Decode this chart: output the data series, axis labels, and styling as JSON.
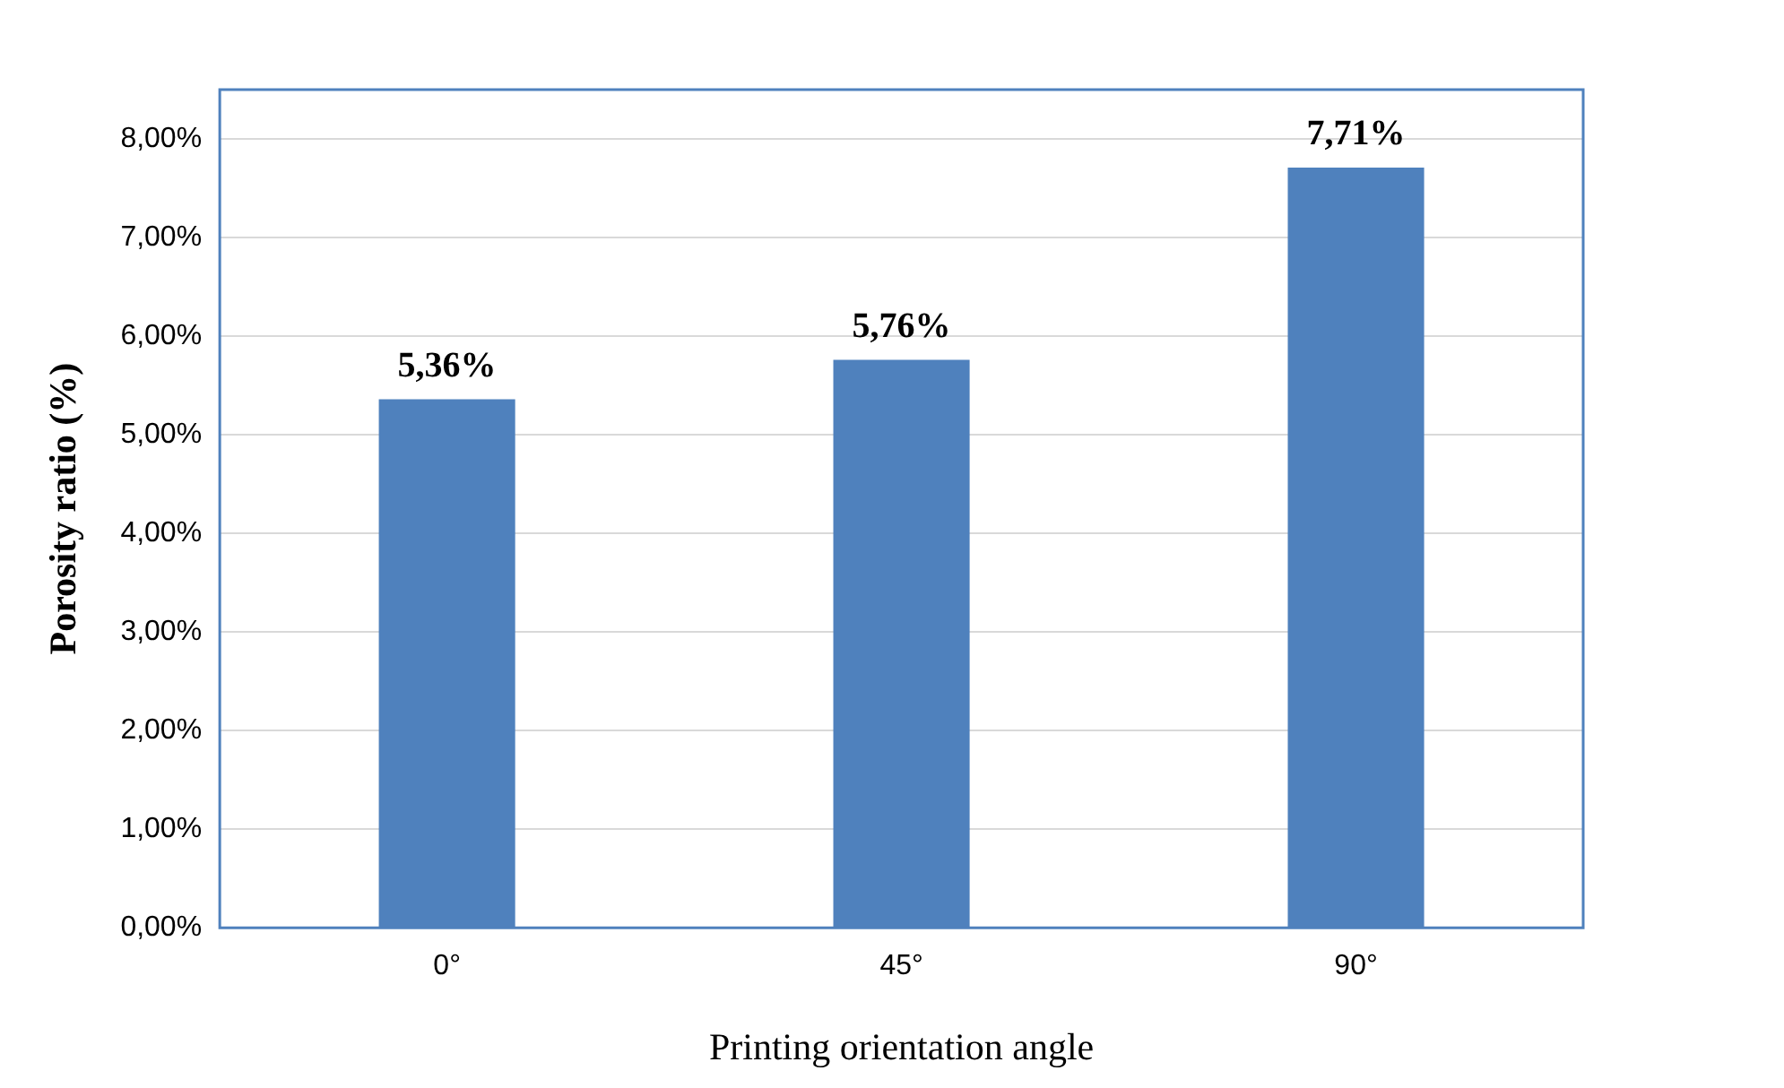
{
  "chart_data": {
    "type": "bar",
    "xlabel": "Printing orientation angle",
    "ylabel": "Porosity ratio (%)",
    "categories": [
      "0°",
      "45°",
      "90°"
    ],
    "values": [
      5.36,
      5.76,
      7.71
    ],
    "color": "#4f81bd",
    "value_labels": [
      "5,36%",
      "5,76%",
      "7,71%"
    ],
    "ylim": [
      0,
      8.5
    ],
    "yticks": [
      {
        "value": 0,
        "label": "0,00%"
      },
      {
        "value": 1,
        "label": "1,00%"
      },
      {
        "value": 2,
        "label": "2,00%"
      },
      {
        "value": 3,
        "label": "3,00%"
      },
      {
        "value": 4,
        "label": "4,00%"
      },
      {
        "value": 5,
        "label": "5,00%"
      },
      {
        "value": 6,
        "label": "6,00%"
      },
      {
        "value": 7,
        "label": "7,00%"
      },
      {
        "value": 8,
        "label": "8,00%"
      }
    ],
    "grid": "y",
    "legend": false
  }
}
